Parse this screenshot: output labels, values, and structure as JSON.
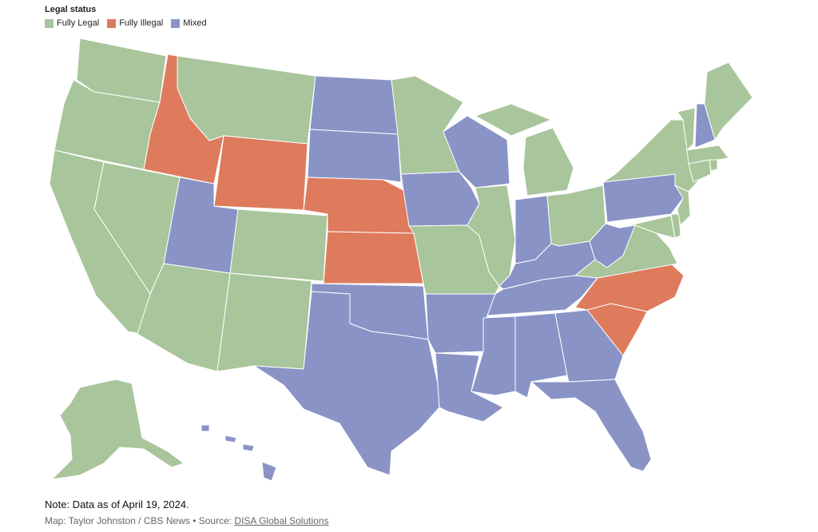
{
  "legend": {
    "title": "Legal status",
    "items": [
      {
        "label": "Fully Legal",
        "color": "#a8c59b"
      },
      {
        "label": "Fully Illegal",
        "color": "#de7b5c"
      },
      {
        "label": "Mixed",
        "color": "#8993c6"
      }
    ]
  },
  "states": {
    "legal": [
      "Washington",
      "Oregon",
      "California",
      "Nevada",
      "Arizona",
      "Montana",
      "Colorado",
      "New Mexico",
      "Minnesota",
      "Missouri",
      "Illinois",
      "Michigan",
      "Ohio",
      "Virginia",
      "New York",
      "Vermont",
      "Maine",
      "Massachusetts",
      "Connecticut",
      "Rhode Island",
      "New Jersey",
      "Delaware",
      "Maryland",
      "Alaska"
    ],
    "illegal": [
      "Idaho",
      "Wyoming",
      "Nebraska",
      "Kansas",
      "North Carolina",
      "South Carolina"
    ],
    "mixed": [
      "Utah",
      "North Dakota",
      "South Dakota",
      "Oklahoma",
      "Texas",
      "Iowa",
      "Wisconsin",
      "Arkansas",
      "Louisiana",
      "Indiana",
      "Kentucky",
      "Tennessee",
      "Mississippi",
      "Alabama",
      "Georgia",
      "Florida",
      "West Virginia",
      "Pennsylvania",
      "New Hampshire",
      "Hawaii"
    ]
  },
  "note": "Note: Data as of April 19, 2024.",
  "credit": {
    "prefix": "Map: Taylor Johnston / CBS News • Source: ",
    "source_link": "DISA Global Solutions"
  }
}
